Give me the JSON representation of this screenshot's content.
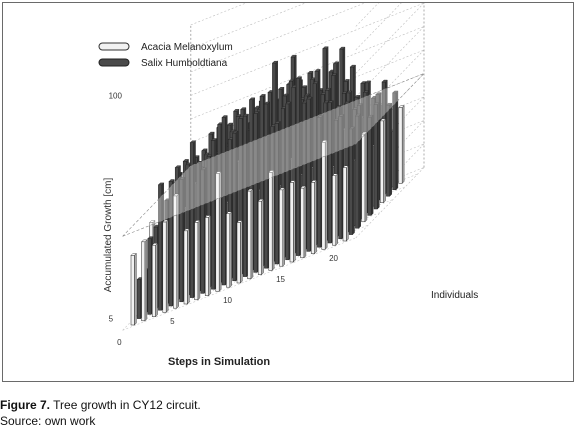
{
  "chart_data": {
    "type": "bar",
    "variant": "3d-bar",
    "xlabel": "Steps in Simulation",
    "ylabel": "Individuals",
    "zlabel": "Accumulated Growth [cm]",
    "x_ticks": [
      "0",
      "5",
      "10",
      "15",
      "20"
    ],
    "z_ticks": [
      "5",
      "100"
    ],
    "legend_position": "top-left",
    "grid": true,
    "series": [
      {
        "name": "Acacia Melanoxylum",
        "color": "#f2f2f2",
        "values": [
          38,
          36,
          35,
          48,
          50,
          35,
          40,
          34,
          55,
          37,
          33,
          40,
          36,
          52,
          34,
          38,
          36,
          31,
          50,
          35,
          40
        ]
      },
      {
        "name": "Salix Humboldtiana",
        "color": "#4a4a4a",
        "values": [
          20,
          42,
          58,
          62,
          66,
          70,
          60,
          78,
          74,
          70,
          82,
          88,
          76,
          70,
          84,
          80,
          74,
          68,
          62,
          58,
          54
        ]
      }
    ]
  },
  "caption": {
    "label": "Figure 7.",
    "text": "Tree growth in CY12 circuit.",
    "source": "Source: own work"
  }
}
